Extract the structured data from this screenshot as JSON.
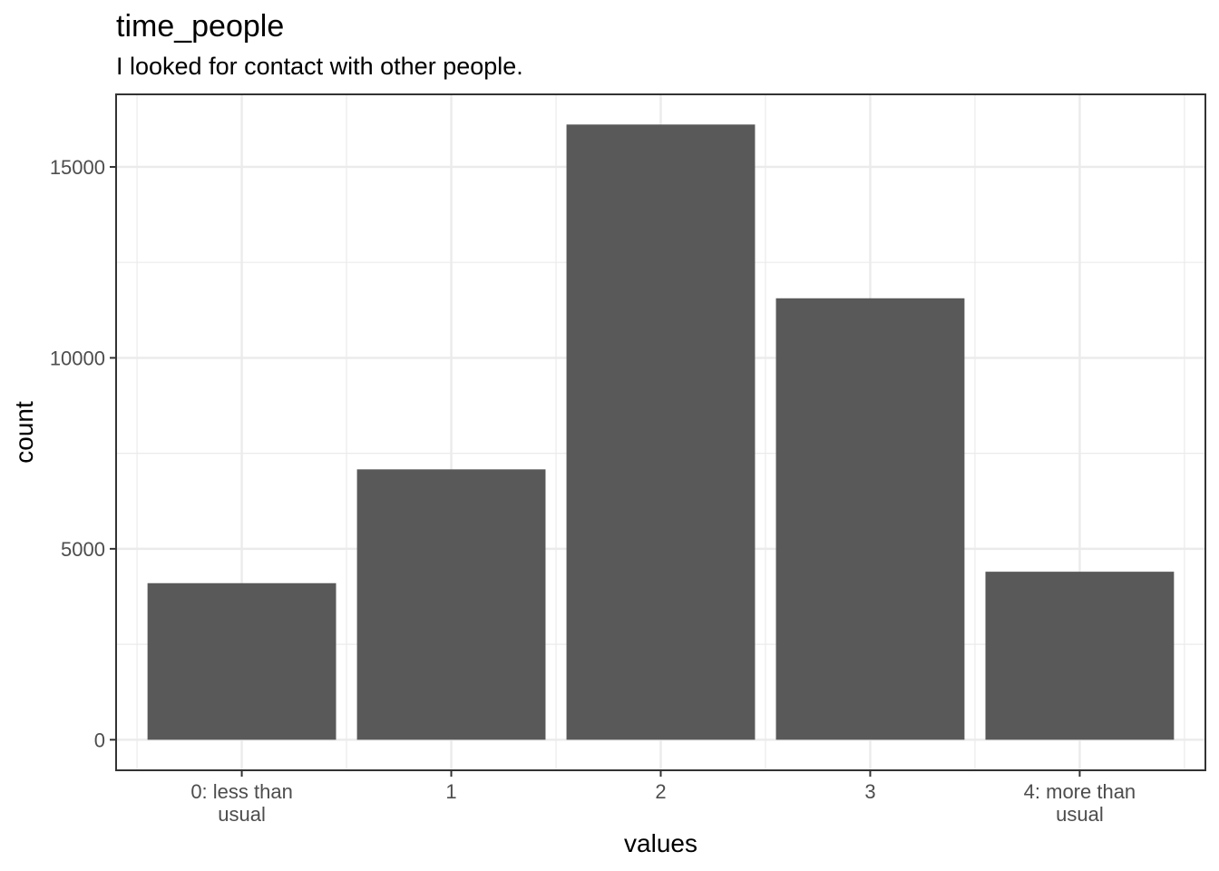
{
  "chart_data": {
    "type": "bar",
    "title": "time_people",
    "subtitle": "I looked for contact with other people.",
    "xlabel": "values",
    "ylabel": "count",
    "categories": [
      "0: less than usual",
      "1",
      "2",
      "3",
      "4: more than usual"
    ],
    "category_lines": [
      [
        "0: less than",
        "usual"
      ],
      [
        "1"
      ],
      [
        "2"
      ],
      [
        "3"
      ],
      [
        "4: more than",
        "usual"
      ]
    ],
    "values": [
      4100,
      7080,
      16110,
      11560,
      4400
    ],
    "ylim": [
      -800,
      16900
    ],
    "yticks": [
      0,
      5000,
      10000,
      15000
    ],
    "grid": true,
    "bar_color": "#595959"
  }
}
